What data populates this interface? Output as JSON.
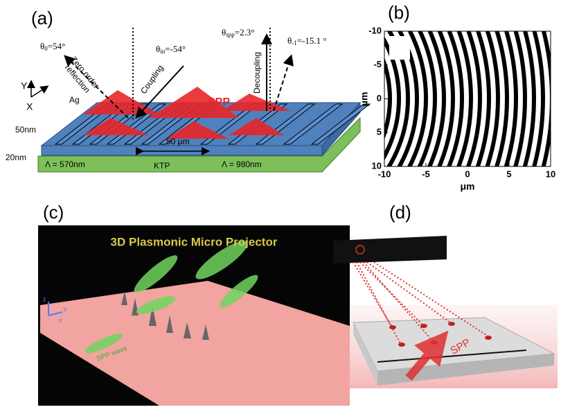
{
  "panels": {
    "a": {
      "label": "(a)",
      "angles": [
        {
          "symbol": "θ",
          "sub": "0",
          "rest": "=54°"
        },
        {
          "symbol": "θ",
          "sub": "in",
          "rest": "=-54°"
        },
        {
          "symbol": "θ",
          "sub": "spp",
          "rest": "=2.3°"
        },
        {
          "symbol": "θ",
          "sub": "-1",
          "rest": "=-15.1 °"
        }
      ],
      "zero_order": [
        "Zero order",
        "reflection"
      ],
      "coupling": "Coupling",
      "decoupling": "Decoupling",
      "axis_y": "Y",
      "axis_x": "X",
      "metal": "Ag",
      "spp": "SPP",
      "thickness_top": "50nm",
      "thickness_bottom": "20nm",
      "distance": "50 μm",
      "period_left": "Λ = 570nm",
      "substrate": "KTP",
      "period_right": "Λ = 980nm"
    },
    "b": {
      "label": "(b)",
      "xticks": [
        -10,
        -5,
        0,
        5,
        10
      ],
      "yticks": [
        -10,
        -5,
        0,
        5,
        10
      ],
      "xlim": [
        -10,
        10
      ],
      "ylim": [
        -10,
        10
      ],
      "xlabel": "μm",
      "ylabel": "μm"
    },
    "c": {
      "label": "(c)",
      "title": "3D Plasmonic Micro Projector",
      "axis_z": "z",
      "axis_y": "y",
      "axis_x": "x",
      "wave": "SPP wave"
    },
    "d": {
      "label": "(d)",
      "spp": "SPP"
    }
  }
}
